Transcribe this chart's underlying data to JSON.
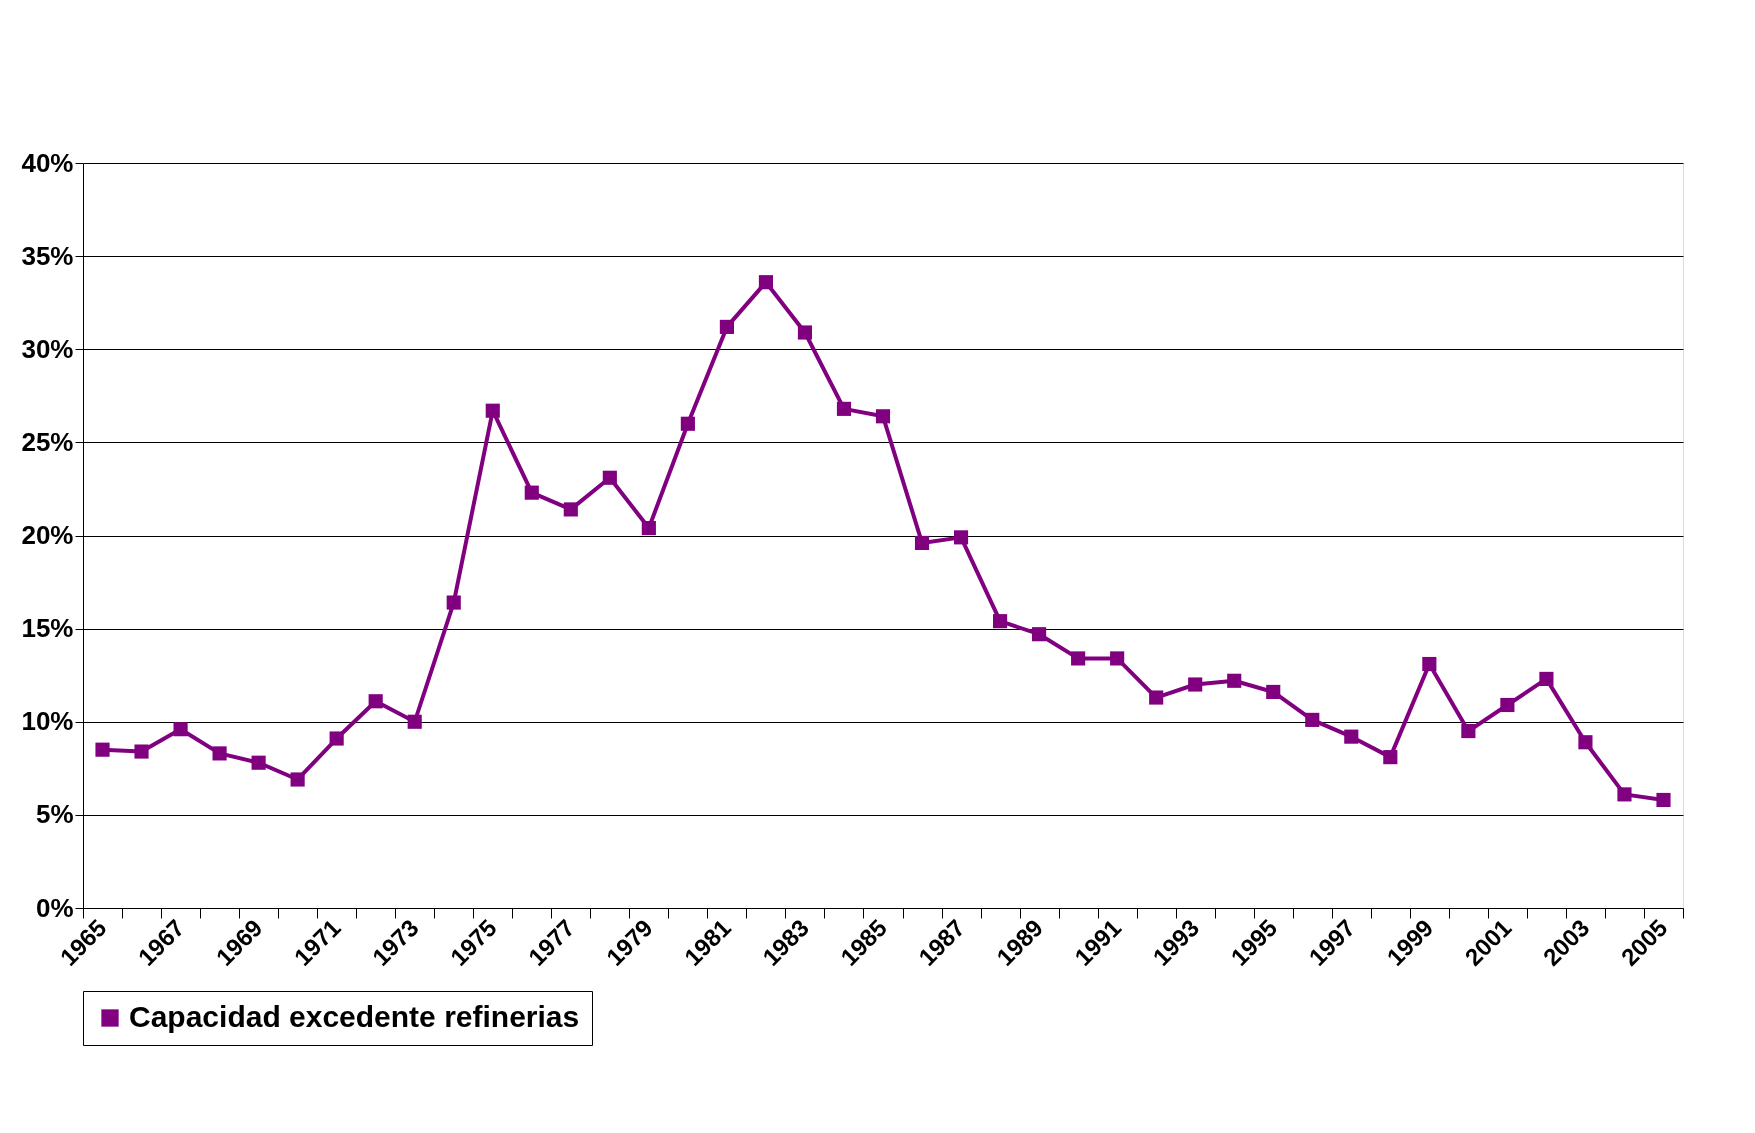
{
  "chart_data": {
    "type": "line",
    "categories": [
      "1965",
      null,
      "1967",
      null,
      "1969",
      null,
      "1971",
      null,
      "1973",
      null,
      "1975",
      null,
      "1977",
      null,
      "1979",
      null,
      "1981",
      null,
      "1983",
      null,
      "1985",
      null,
      "1987",
      null,
      "1989",
      null,
      "1991",
      null,
      "1993",
      null,
      "1995",
      null,
      "1997",
      null,
      "1999",
      null,
      "2001",
      null,
      "2003",
      null,
      "2005"
    ],
    "series": [
      {
        "name": "Capacidad excedente refinerias",
        "color": "#800080",
        "values": [
          8.5,
          8.4,
          9.6,
          8.3,
          7.8,
          6.9,
          9.1,
          11.1,
          10.0,
          16.4,
          26.7,
          22.3,
          21.4,
          23.1,
          20.4,
          26.0,
          31.2,
          33.6,
          30.9,
          26.8,
          26.4,
          19.6,
          19.9,
          15.4,
          14.7,
          13.4,
          13.4,
          11.3,
          12.0,
          12.2,
          11.6,
          10.1,
          9.2,
          8.1,
          13.1,
          9.5,
          10.9,
          12.3,
          8.9,
          6.1,
          5.8
        ]
      }
    ],
    "ylim": [
      0,
      40
    ],
    "yticks": [
      {
        "value": 0,
        "label": "0%"
      },
      {
        "value": 5,
        "label": "5%"
      },
      {
        "value": 10,
        "label": "10%"
      },
      {
        "value": 15,
        "label": "15%"
      },
      {
        "value": 20,
        "label": "20%"
      },
      {
        "value": 25,
        "label": "25%"
      },
      {
        "value": 30,
        "label": "30%"
      },
      {
        "value": 35,
        "label": "35%"
      },
      {
        "value": 40,
        "label": "40%"
      }
    ],
    "grid": "y",
    "legend": "bottom",
    "marker": "square",
    "line_style": "solid"
  }
}
